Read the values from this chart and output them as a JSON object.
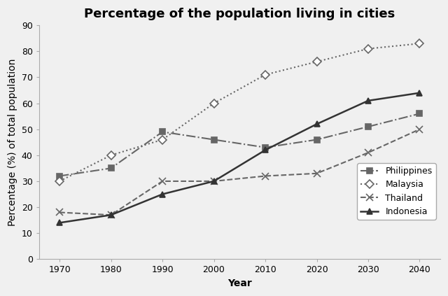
{
  "title": "Percentage of the population living in cities",
  "xlabel": "Year",
  "ylabel": "Percentage (%) of total population",
  "years": [
    1970,
    1980,
    1990,
    2000,
    2010,
    2020,
    2030,
    2040
  ],
  "series": {
    "Philippines": {
      "values": [
        32,
        35,
        49,
        46,
        43,
        46,
        51,
        56
      ],
      "color": "#666666",
      "linestyle": "-.",
      "marker": "s",
      "markersize": 6,
      "markerfacecolor": "#666666",
      "markeredgecolor": "#666666",
      "linewidth": 1.5
    },
    "Malaysia": {
      "values": [
        30,
        40,
        46,
        60,
        71,
        76,
        81,
        83
      ],
      "color": "#666666",
      "linestyle": ":",
      "marker": "D",
      "markersize": 6,
      "markerfacecolor": "white",
      "markeredgecolor": "#666666",
      "linewidth": 1.5
    },
    "Thailand": {
      "values": [
        18,
        17,
        30,
        30,
        32,
        33,
        41,
        50
      ],
      "color": "#666666",
      "linestyle": "--",
      "marker": "x",
      "markersize": 7,
      "markerfacecolor": "#666666",
      "markeredgecolor": "#666666",
      "linewidth": 1.5
    },
    "Indonesia": {
      "values": [
        14,
        17,
        25,
        30,
        42,
        52,
        61,
        64
      ],
      "color": "#333333",
      "linestyle": "-",
      "marker": "^",
      "markersize": 6,
      "markerfacecolor": "#333333",
      "markeredgecolor": "#333333",
      "linewidth": 1.8
    }
  },
  "ylim": [
    0,
    90
  ],
  "yticks": [
    0,
    10,
    20,
    30,
    40,
    50,
    60,
    70,
    80,
    90
  ],
  "background_color": "#f0f0f0",
  "legend_loc": "lower right",
  "title_fontsize": 13,
  "axis_label_fontsize": 10,
  "tick_fontsize": 9,
  "legend_fontsize": 9
}
